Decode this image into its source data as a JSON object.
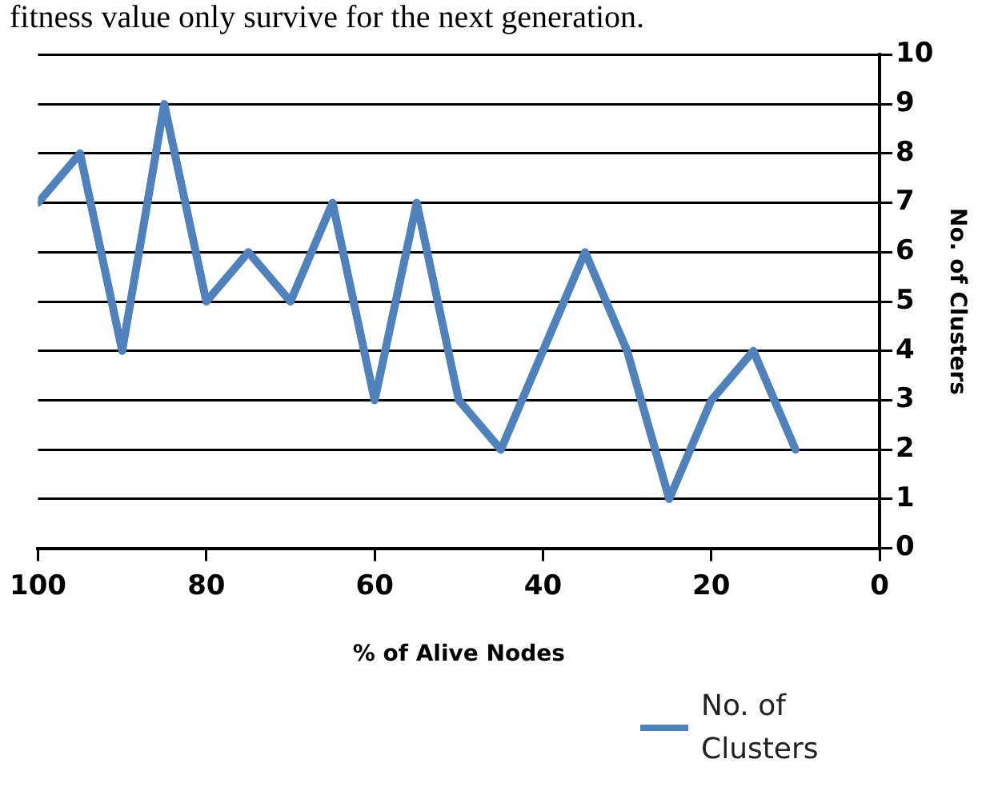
{
  "chart_data": {
    "type": "line",
    "annotations": [
      "fitness value only survive for the next generation."
    ],
    "xlabel": "% of Alive Nodes",
    "ylabel": "No. of Clusters",
    "x": [
      100,
      95,
      90,
      85,
      80,
      75,
      70,
      65,
      60,
      55,
      50,
      45,
      40,
      35,
      30,
      25,
      20,
      15,
      10
    ],
    "series": [
      {
        "name": "No. of Clusters",
        "color": "#4f81bd",
        "values": [
          7,
          8,
          4,
          9,
          5,
          6,
          5,
          7,
          3,
          7,
          3,
          2,
          4,
          6,
          4,
          1,
          3,
          4,
          2
        ]
      }
    ],
    "xlim": [
      100,
      0
    ],
    "xticks": [
      100,
      80,
      60,
      40,
      20,
      0
    ],
    "ylim": [
      0,
      10
    ],
    "yticks": [
      0,
      1,
      2,
      3,
      4,
      5,
      6,
      7,
      8,
      9,
      10
    ],
    "grid": "y",
    "legend": "bottom right",
    "marker": "none",
    "line_style": "solid"
  }
}
